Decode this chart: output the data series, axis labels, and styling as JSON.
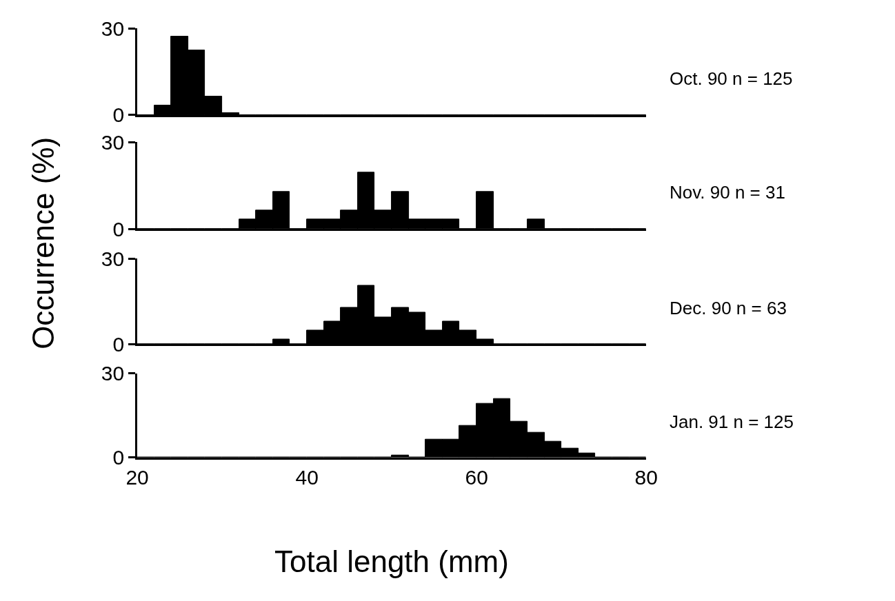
{
  "chart_data": [
    {
      "type": "histogram",
      "annotations": [
        "Oct. 90 n = 125"
      ],
      "ylabel": "Occurrence (%)",
      "color": "#000000",
      "bins": [
        20,
        22,
        24,
        26,
        28,
        30,
        32,
        34,
        36,
        38,
        40,
        42,
        44,
        46,
        48,
        50,
        52,
        54,
        56,
        58,
        60,
        62,
        64,
        66,
        68,
        70,
        72,
        74,
        76,
        78,
        80
      ],
      "values": [
        0,
        3.2,
        27.2,
        22.4,
        6.4,
        0.8,
        0,
        0,
        0,
        0,
        0,
        0,
        0,
        0,
        0,
        0,
        0,
        0,
        0,
        0,
        0,
        0,
        0,
        0,
        0,
        0,
        0,
        0,
        0,
        0
      ],
      "xlim": [
        20,
        80
      ],
      "ylim": [
        0,
        30
      ],
      "yticks": [
        0,
        30
      ],
      "tick_labels": "y"
    },
    {
      "type": "histogram",
      "annotations": [
        "Nov. 90 n = 31"
      ],
      "color": "#000000",
      "bins": [
        20,
        22,
        24,
        26,
        28,
        30,
        32,
        34,
        36,
        38,
        40,
        42,
        44,
        46,
        48,
        50,
        52,
        54,
        56,
        58,
        60,
        62,
        64,
        66,
        68,
        70,
        72,
        74,
        76,
        78,
        80
      ],
      "values": [
        0,
        0,
        0,
        0,
        0,
        0,
        3.2,
        6.5,
        12.9,
        0,
        3.2,
        3.2,
        6.5,
        19.4,
        6.5,
        12.9,
        3.2,
        3.2,
        3.2,
        0,
        12.9,
        0,
        0,
        3.2,
        0,
        0,
        0,
        0,
        0,
        0
      ],
      "xlim": [
        20,
        80
      ],
      "ylim": [
        0,
        30
      ],
      "yticks": [
        0,
        30
      ],
      "tick_labels": "y"
    },
    {
      "type": "histogram",
      "annotations": [
        "Dec. 90 n = 63"
      ],
      "color": "#000000",
      "bins": [
        20,
        22,
        24,
        26,
        28,
        30,
        32,
        34,
        36,
        38,
        40,
        42,
        44,
        46,
        48,
        50,
        52,
        54,
        56,
        58,
        60,
        62,
        64,
        66,
        68,
        70,
        72,
        74,
        76,
        78,
        80
      ],
      "values": [
        0,
        0,
        0,
        0,
        0,
        0,
        0,
        0,
        1.6,
        0,
        4.8,
        7.9,
        12.7,
        20.6,
        9.5,
        12.7,
        11.1,
        4.8,
        7.9,
        4.8,
        1.6,
        0,
        0,
        0,
        0,
        0,
        0,
        0,
        0,
        0
      ],
      "xlim": [
        20,
        80
      ],
      "ylim": [
        0,
        30
      ],
      "yticks": [
        0,
        30
      ],
      "tick_labels": "y"
    },
    {
      "type": "histogram",
      "annotations": [
        "Jan. 91 n = 125"
      ],
      "xlabel": "Total length (mm)",
      "color": "#000000",
      "bins": [
        20,
        22,
        24,
        26,
        28,
        30,
        32,
        34,
        36,
        38,
        40,
        42,
        44,
        46,
        48,
        50,
        52,
        54,
        56,
        58,
        60,
        62,
        64,
        66,
        68,
        70,
        72,
        74,
        76,
        78,
        80
      ],
      "values": [
        0,
        0,
        0,
        0,
        0,
        0,
        0,
        0,
        0,
        0,
        0,
        0,
        0,
        0,
        0,
        0.8,
        0,
        6.4,
        6.4,
        11.2,
        19.2,
        20.8,
        12.8,
        8.8,
        5.6,
        3.2,
        1.6,
        0,
        0,
        0
      ],
      "xlim": [
        20,
        80
      ],
      "xticks": [
        20,
        40,
        60,
        80
      ],
      "ylim": [
        0,
        30
      ],
      "yticks": [
        0,
        30
      ]
    }
  ]
}
